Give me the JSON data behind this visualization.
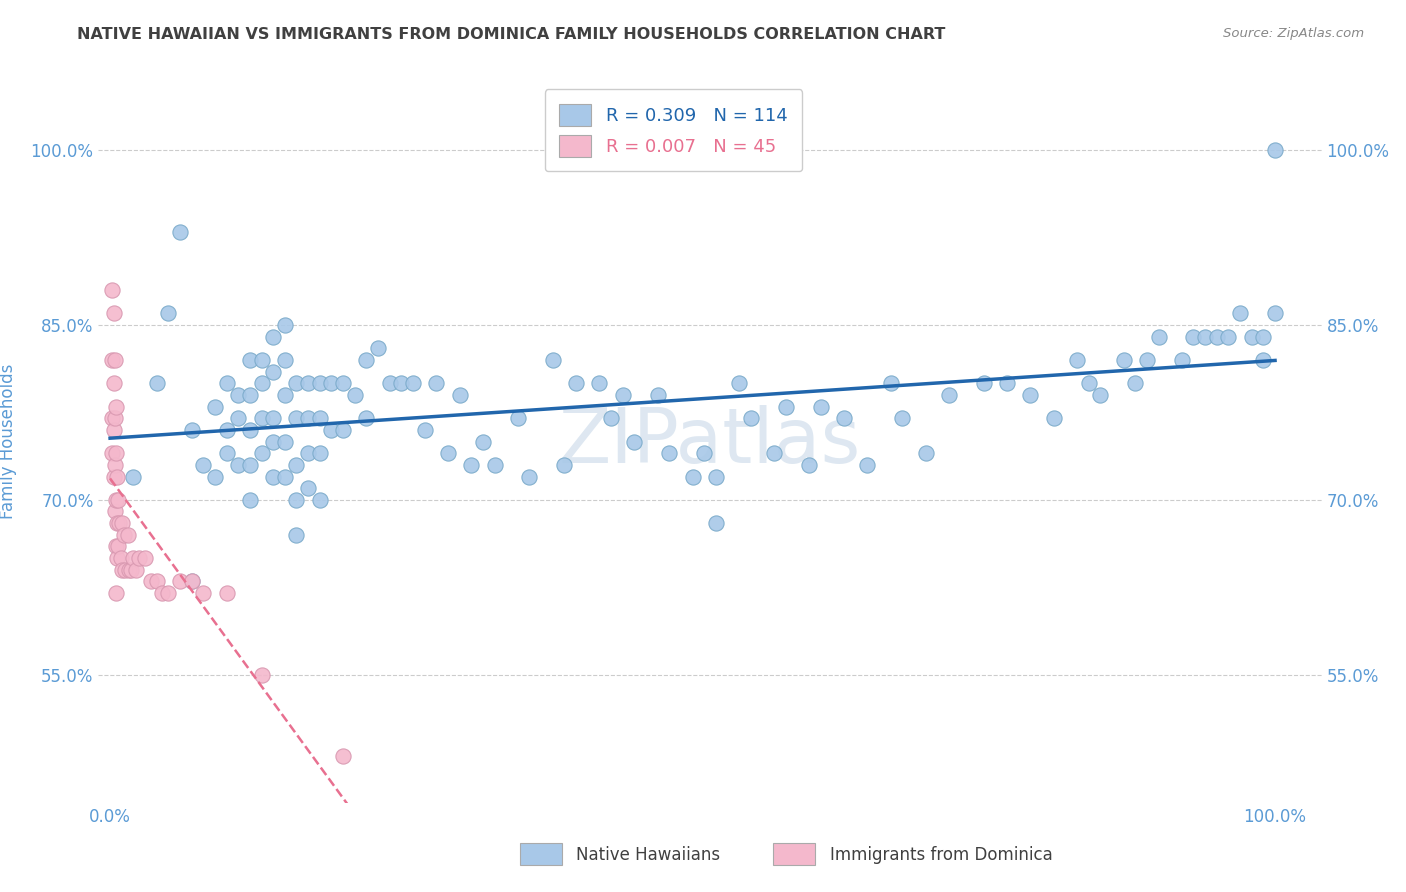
{
  "title": "NATIVE HAWAIIAN VS IMMIGRANTS FROM DOMINICA FAMILY HOUSEHOLDS CORRELATION CHART",
  "source": "Source: ZipAtlas.com",
  "ylabel": "Family Households",
  "xlim": [
    -0.01,
    1.04
  ],
  "ylim": [
    0.44,
    1.06
  ],
  "xticks": [
    0.0,
    0.25,
    0.5,
    0.75,
    1.0
  ],
  "xticklabels": [
    "0.0%",
    "",
    "",
    "",
    "100.0%"
  ],
  "ytick_positions": [
    0.55,
    0.7,
    0.85,
    1.0
  ],
  "ytick_labels": [
    "55.0%",
    "70.0%",
    "85.0%",
    "100.0%"
  ],
  "grid_yticks": [
    1.0,
    0.85,
    0.7,
    0.55
  ],
  "blue_color": "#a8c8e8",
  "blue_edge_color": "#7aaaca",
  "blue_line_color": "#2166ac",
  "pink_color": "#f4b8cc",
  "pink_edge_color": "#d898b0",
  "pink_line_color": "#e87090",
  "title_color": "#404040",
  "tick_label_color": "#5b9bd5",
  "legend_r_blue": "R = 0.309",
  "legend_n_blue": "N = 114",
  "legend_r_pink": "R = 0.007",
  "legend_n_pink": "N = 45",
  "legend_label_blue": "Native Hawaiians",
  "legend_label_pink": "Immigrants from Dominica",
  "blue_scatter_x": [
    0.02,
    0.04,
    0.05,
    0.06,
    0.07,
    0.07,
    0.08,
    0.09,
    0.09,
    0.1,
    0.1,
    0.1,
    0.11,
    0.11,
    0.11,
    0.12,
    0.12,
    0.12,
    0.12,
    0.12,
    0.13,
    0.13,
    0.13,
    0.13,
    0.14,
    0.14,
    0.14,
    0.14,
    0.14,
    0.15,
    0.15,
    0.15,
    0.15,
    0.15,
    0.16,
    0.16,
    0.16,
    0.16,
    0.16,
    0.17,
    0.17,
    0.17,
    0.17,
    0.18,
    0.18,
    0.18,
    0.18,
    0.19,
    0.19,
    0.2,
    0.2,
    0.21,
    0.22,
    0.22,
    0.23,
    0.24,
    0.25,
    0.26,
    0.27,
    0.28,
    0.29,
    0.3,
    0.31,
    0.32,
    0.33,
    0.35,
    0.36,
    0.38,
    0.39,
    0.4,
    0.42,
    0.43,
    0.44,
    0.45,
    0.47,
    0.48,
    0.5,
    0.51,
    0.52,
    0.52,
    0.54,
    0.55,
    0.57,
    0.58,
    0.6,
    0.61,
    0.63,
    0.65,
    0.67,
    0.68,
    0.7,
    0.72,
    0.75,
    0.77,
    0.79,
    0.81,
    0.83,
    0.84,
    0.85,
    0.87,
    0.88,
    0.89,
    0.9,
    0.92,
    0.93,
    0.94,
    0.95,
    0.96,
    0.97,
    0.98,
    0.99,
    0.99,
    1.0,
    1.0
  ],
  "blue_scatter_y": [
    0.72,
    0.8,
    0.86,
    0.93,
    0.76,
    0.63,
    0.73,
    0.78,
    0.72,
    0.8,
    0.76,
    0.74,
    0.79,
    0.77,
    0.73,
    0.82,
    0.79,
    0.76,
    0.73,
    0.7,
    0.82,
    0.8,
    0.77,
    0.74,
    0.84,
    0.81,
    0.77,
    0.75,
    0.72,
    0.85,
    0.82,
    0.79,
    0.75,
    0.72,
    0.8,
    0.77,
    0.73,
    0.7,
    0.67,
    0.8,
    0.77,
    0.74,
    0.71,
    0.8,
    0.77,
    0.74,
    0.7,
    0.8,
    0.76,
    0.8,
    0.76,
    0.79,
    0.82,
    0.77,
    0.83,
    0.8,
    0.8,
    0.8,
    0.76,
    0.8,
    0.74,
    0.79,
    0.73,
    0.75,
    0.73,
    0.77,
    0.72,
    0.82,
    0.73,
    0.8,
    0.8,
    0.77,
    0.79,
    0.75,
    0.79,
    0.74,
    0.72,
    0.74,
    0.72,
    0.68,
    0.8,
    0.77,
    0.74,
    0.78,
    0.73,
    0.78,
    0.77,
    0.73,
    0.8,
    0.77,
    0.74,
    0.79,
    0.8,
    0.8,
    0.79,
    0.77,
    0.82,
    0.8,
    0.79,
    0.82,
    0.8,
    0.82,
    0.84,
    0.82,
    0.84,
    0.84,
    0.84,
    0.84,
    0.86,
    0.84,
    0.82,
    0.84,
    0.86,
    1.0
  ],
  "pink_scatter_x": [
    0.002,
    0.002,
    0.002,
    0.002,
    0.003,
    0.003,
    0.003,
    0.003,
    0.004,
    0.004,
    0.004,
    0.004,
    0.005,
    0.005,
    0.005,
    0.005,
    0.005,
    0.006,
    0.006,
    0.006,
    0.007,
    0.007,
    0.008,
    0.009,
    0.01,
    0.01,
    0.012,
    0.013,
    0.015,
    0.016,
    0.018,
    0.02,
    0.022,
    0.025,
    0.03,
    0.035,
    0.04,
    0.045,
    0.05,
    0.06,
    0.07,
    0.08,
    0.1,
    0.13,
    0.2
  ],
  "pink_scatter_y": [
    0.88,
    0.82,
    0.77,
    0.74,
    0.86,
    0.8,
    0.76,
    0.72,
    0.82,
    0.77,
    0.73,
    0.69,
    0.78,
    0.74,
    0.7,
    0.66,
    0.62,
    0.72,
    0.68,
    0.65,
    0.7,
    0.66,
    0.68,
    0.65,
    0.68,
    0.64,
    0.67,
    0.64,
    0.67,
    0.64,
    0.64,
    0.65,
    0.64,
    0.65,
    0.65,
    0.63,
    0.63,
    0.62,
    0.62,
    0.63,
    0.63,
    0.62,
    0.62,
    0.55,
    0.48
  ],
  "background_color": "#ffffff",
  "watermark_color": "#c8d8e8"
}
